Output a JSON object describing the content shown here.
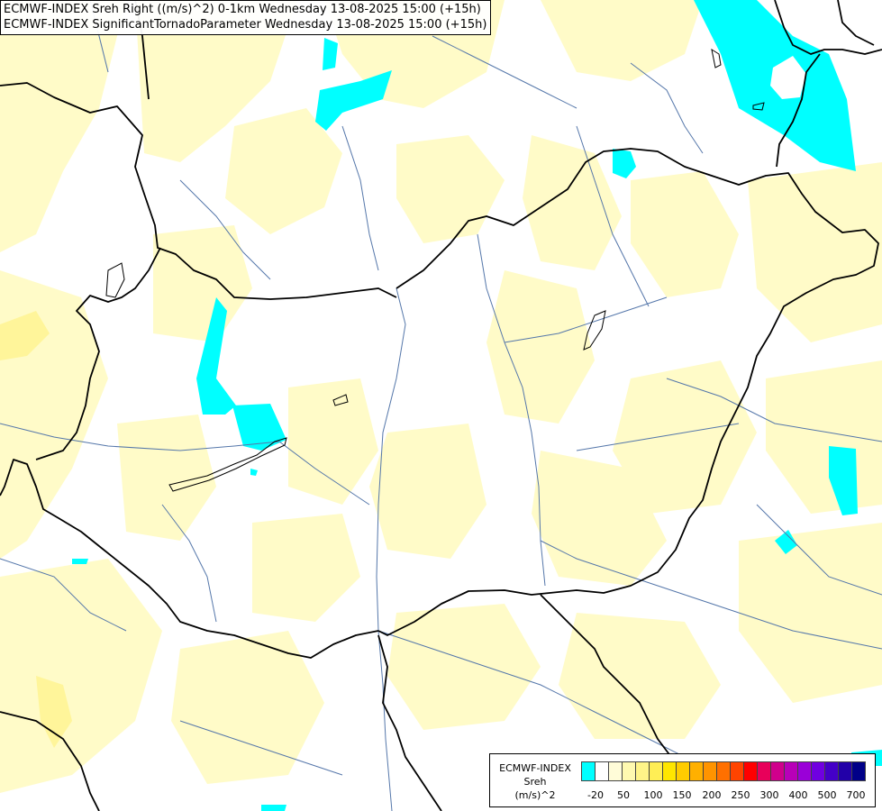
{
  "titles": {
    "line1": "ECMWF-INDEX Sreh Right ((m/s)^2) 0-1km Wednesday 13-08-2025 15:00 (+15h)",
    "line2": "ECMWF-INDEX SignificantTornadoParameter Wednesday 13-08-2025 15:00 (+15h)"
  },
  "legend": {
    "label_line1": "ECMWF-INDEX",
    "label_line2": "Sreh",
    "label_line3": "(m/s)^2",
    "colors": [
      "#00ffff",
      "#ffffff",
      "#fffcd8",
      "#fff9b0",
      "#fff488",
      "#ffee55",
      "#ffe600",
      "#ffcc00",
      "#ffb000",
      "#ff9400",
      "#ff7000",
      "#ff4400",
      "#ff0000",
      "#e8005a",
      "#d0008c",
      "#b800b8",
      "#9a00d8",
      "#7000e0",
      "#4400c8",
      "#2200a8",
      "#000088"
    ],
    "ticks": [
      "-20",
      "50",
      "100",
      "150",
      "200",
      "250",
      "300",
      "400",
      "500",
      "700"
    ]
  },
  "colors": {
    "yellow_fill": "#fffbc8",
    "yellow_dark": "#fff59a",
    "cyan_fill": "#00ffff",
    "border": "#000000",
    "river": "#5577aa"
  }
}
